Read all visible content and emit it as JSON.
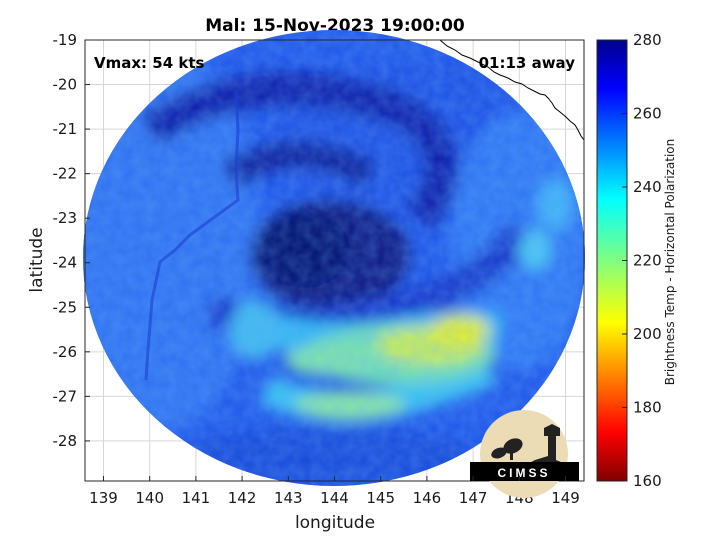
{
  "chart_data": {
    "type": "heatmap",
    "title": "Mal: 15-Nov-2023 19:00:00",
    "xlabel": "longitude",
    "ylabel": "latitude",
    "xlim": [
      138.6,
      149.4
    ],
    "ylim": [
      -28.9,
      -19.0
    ],
    "xticks": [
      139,
      140,
      141,
      142,
      143,
      144,
      145,
      146,
      147,
      148,
      149
    ],
    "yticks": [
      -19,
      -20,
      -21,
      -22,
      -23,
      -24,
      -25,
      -26,
      -27,
      -28
    ],
    "grid": true,
    "colorbar": {
      "label": "Brightness Temp - Horizontal Polarization",
      "range": [
        160,
        280
      ],
      "ticks": [
        280,
        260,
        240,
        220,
        200,
        180,
        160
      ],
      "colormap": "jet"
    },
    "annotations": {
      "vmax": "Vmax: 54 kts",
      "time_away": "01:13 away"
    },
    "storm_center": {
      "lon": 143.9,
      "lat": -23.9
    },
    "features": {
      "background_temp": 258,
      "eye_temp": 272,
      "warm_band_min_temp": 205
    }
  },
  "logo": {
    "text": "CIMSS"
  },
  "colors": {
    "outside_swath": "#ffffff",
    "coast": "#000000",
    "cold_core": "#0a1a8c",
    "warm_band": "#d8ee3a"
  }
}
